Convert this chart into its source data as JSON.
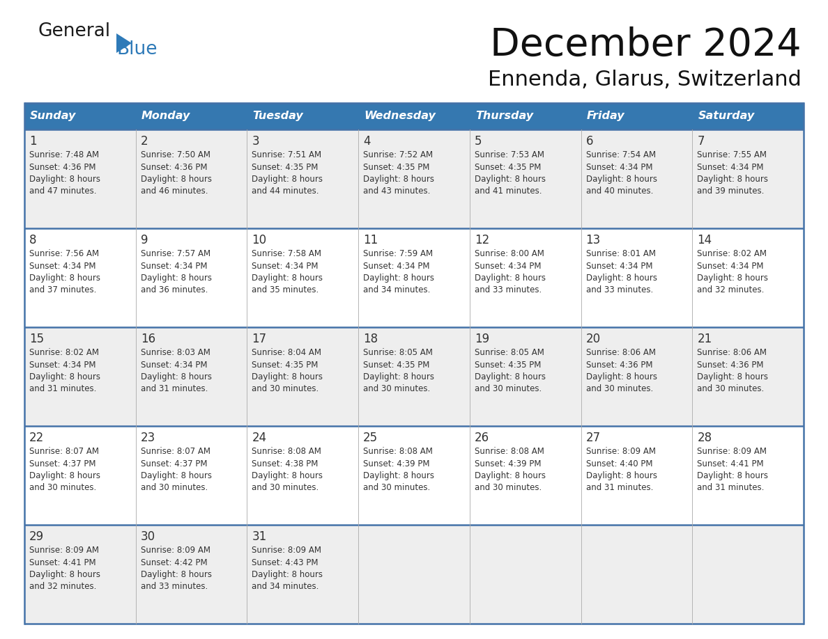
{
  "title": "December 2024",
  "subtitle": "Ennenda, Glarus, Switzerland",
  "header_color": "#3578b0",
  "header_text_color": "#ffffff",
  "day_names": [
    "Sunday",
    "Monday",
    "Tuesday",
    "Wednesday",
    "Thursday",
    "Friday",
    "Saturday"
  ],
  "bg_color": "#ffffff",
  "cell_bg_even": "#eeeeee",
  "cell_bg_odd": "#ffffff",
  "separator_color": "#4472a8",
  "text_color": "#333333",
  "logo_general_color": "#1a1a1a",
  "logo_blue_color": "#2e7ab8",
  "logo_triangle_color": "#2e7ab8",
  "days": [
    {
      "date": 1,
      "col": 0,
      "row": 0,
      "sunrise": "7:48 AM",
      "sunset": "4:36 PM",
      "daylight": "8 hours and 47 minutes."
    },
    {
      "date": 2,
      "col": 1,
      "row": 0,
      "sunrise": "7:50 AM",
      "sunset": "4:36 PM",
      "daylight": "8 hours and 46 minutes."
    },
    {
      "date": 3,
      "col": 2,
      "row": 0,
      "sunrise": "7:51 AM",
      "sunset": "4:35 PM",
      "daylight": "8 hours and 44 minutes."
    },
    {
      "date": 4,
      "col": 3,
      "row": 0,
      "sunrise": "7:52 AM",
      "sunset": "4:35 PM",
      "daylight": "8 hours and 43 minutes."
    },
    {
      "date": 5,
      "col": 4,
      "row": 0,
      "sunrise": "7:53 AM",
      "sunset": "4:35 PM",
      "daylight": "8 hours and 41 minutes."
    },
    {
      "date": 6,
      "col": 5,
      "row": 0,
      "sunrise": "7:54 AM",
      "sunset": "4:34 PM",
      "daylight": "8 hours and 40 minutes."
    },
    {
      "date": 7,
      "col": 6,
      "row": 0,
      "sunrise": "7:55 AM",
      "sunset": "4:34 PM",
      "daylight": "8 hours and 39 minutes."
    },
    {
      "date": 8,
      "col": 0,
      "row": 1,
      "sunrise": "7:56 AM",
      "sunset": "4:34 PM",
      "daylight": "8 hours and 37 minutes."
    },
    {
      "date": 9,
      "col": 1,
      "row": 1,
      "sunrise": "7:57 AM",
      "sunset": "4:34 PM",
      "daylight": "8 hours and 36 minutes."
    },
    {
      "date": 10,
      "col": 2,
      "row": 1,
      "sunrise": "7:58 AM",
      "sunset": "4:34 PM",
      "daylight": "8 hours and 35 minutes."
    },
    {
      "date": 11,
      "col": 3,
      "row": 1,
      "sunrise": "7:59 AM",
      "sunset": "4:34 PM",
      "daylight": "8 hours and 34 minutes."
    },
    {
      "date": 12,
      "col": 4,
      "row": 1,
      "sunrise": "8:00 AM",
      "sunset": "4:34 PM",
      "daylight": "8 hours and 33 minutes."
    },
    {
      "date": 13,
      "col": 5,
      "row": 1,
      "sunrise": "8:01 AM",
      "sunset": "4:34 PM",
      "daylight": "8 hours and 33 minutes."
    },
    {
      "date": 14,
      "col": 6,
      "row": 1,
      "sunrise": "8:02 AM",
      "sunset": "4:34 PM",
      "daylight": "8 hours and 32 minutes."
    },
    {
      "date": 15,
      "col": 0,
      "row": 2,
      "sunrise": "8:02 AM",
      "sunset": "4:34 PM",
      "daylight": "8 hours and 31 minutes."
    },
    {
      "date": 16,
      "col": 1,
      "row": 2,
      "sunrise": "8:03 AM",
      "sunset": "4:34 PM",
      "daylight": "8 hours and 31 minutes."
    },
    {
      "date": 17,
      "col": 2,
      "row": 2,
      "sunrise": "8:04 AM",
      "sunset": "4:35 PM",
      "daylight": "8 hours and 30 minutes."
    },
    {
      "date": 18,
      "col": 3,
      "row": 2,
      "sunrise": "8:05 AM",
      "sunset": "4:35 PM",
      "daylight": "8 hours and 30 minutes."
    },
    {
      "date": 19,
      "col": 4,
      "row": 2,
      "sunrise": "8:05 AM",
      "sunset": "4:35 PM",
      "daylight": "8 hours and 30 minutes."
    },
    {
      "date": 20,
      "col": 5,
      "row": 2,
      "sunrise": "8:06 AM",
      "sunset": "4:36 PM",
      "daylight": "8 hours and 30 minutes."
    },
    {
      "date": 21,
      "col": 6,
      "row": 2,
      "sunrise": "8:06 AM",
      "sunset": "4:36 PM",
      "daylight": "8 hours and 30 minutes."
    },
    {
      "date": 22,
      "col": 0,
      "row": 3,
      "sunrise": "8:07 AM",
      "sunset": "4:37 PM",
      "daylight": "8 hours and 30 minutes."
    },
    {
      "date": 23,
      "col": 1,
      "row": 3,
      "sunrise": "8:07 AM",
      "sunset": "4:37 PM",
      "daylight": "8 hours and 30 minutes."
    },
    {
      "date": 24,
      "col": 2,
      "row": 3,
      "sunrise": "8:08 AM",
      "sunset": "4:38 PM",
      "daylight": "8 hours and 30 minutes."
    },
    {
      "date": 25,
      "col": 3,
      "row": 3,
      "sunrise": "8:08 AM",
      "sunset": "4:39 PM",
      "daylight": "8 hours and 30 minutes."
    },
    {
      "date": 26,
      "col": 4,
      "row": 3,
      "sunrise": "8:08 AM",
      "sunset": "4:39 PM",
      "daylight": "8 hours and 30 minutes."
    },
    {
      "date": 27,
      "col": 5,
      "row": 3,
      "sunrise": "8:09 AM",
      "sunset": "4:40 PM",
      "daylight": "8 hours and 31 minutes."
    },
    {
      "date": 28,
      "col": 6,
      "row": 3,
      "sunrise": "8:09 AM",
      "sunset": "4:41 PM",
      "daylight": "8 hours and 31 minutes."
    },
    {
      "date": 29,
      "col": 0,
      "row": 4,
      "sunrise": "8:09 AM",
      "sunset": "4:41 PM",
      "daylight": "8 hours and 32 minutes."
    },
    {
      "date": 30,
      "col": 1,
      "row": 4,
      "sunrise": "8:09 AM",
      "sunset": "4:42 PM",
      "daylight": "8 hours and 33 minutes."
    },
    {
      "date": 31,
      "col": 2,
      "row": 4,
      "sunrise": "8:09 AM",
      "sunset": "4:43 PM",
      "daylight": "8 hours and 34 minutes."
    }
  ]
}
